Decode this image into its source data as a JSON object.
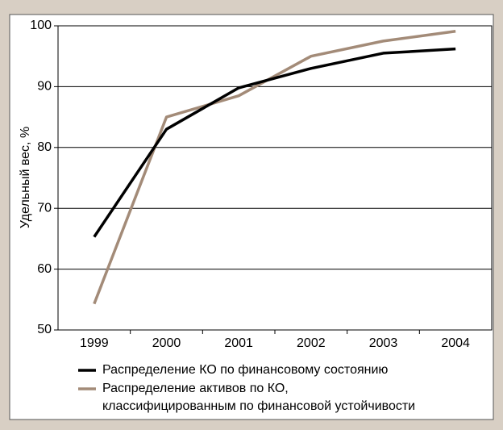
{
  "chart_data": {
    "type": "line",
    "y_label": "Удельный вес, %",
    "categories": [
      "1999",
      "2000",
      "2001",
      "2002",
      "2003",
      "2004"
    ],
    "series": [
      {
        "name": "Распределение КО по финансовому состоянию",
        "color": "#000000",
        "values": [
          65.3,
          83,
          89.8,
          93,
          95.5,
          96.2
        ]
      },
      {
        "name": "Распределение активов по КО, классифицированным по финансовой устойчивости",
        "color": "#a38b78",
        "values": [
          54.3,
          85,
          88.5,
          95,
          97.5,
          99.1
        ]
      }
    ],
    "ylim": [
      50,
      100
    ],
    "yticks": [
      50,
      60,
      70,
      80,
      90,
      100
    ],
    "grid": true
  }
}
